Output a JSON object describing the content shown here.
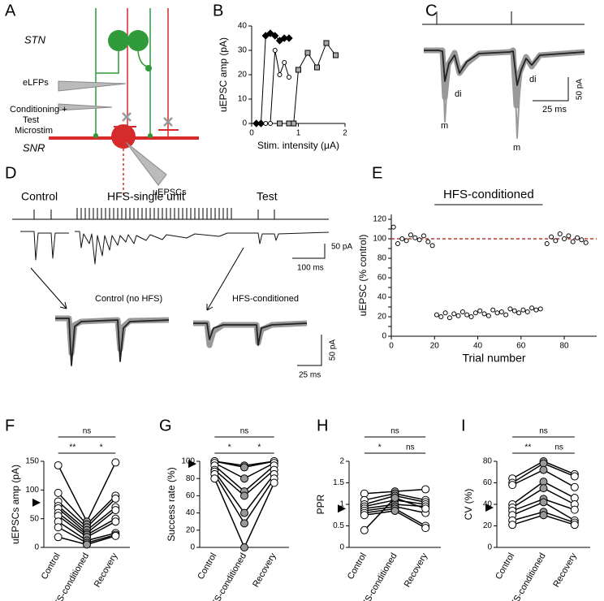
{
  "panel_labels": [
    "A",
    "B",
    "C",
    "D",
    "E",
    "F",
    "G",
    "H",
    "I"
  ],
  "diagram": {
    "stn": "STN",
    "snr": "SNR",
    "elfps": "eLFPs",
    "microstim": [
      "Conditioning +",
      "Test",
      "Microstim"
    ],
    "uepscs": "uEPSCs"
  },
  "traces_c": {
    "labels": [
      "m",
      "di",
      "di",
      "m"
    ],
    "scale_y": "50 pA",
    "scale_x": "25 ms"
  },
  "traces_d": {
    "control": "Control",
    "hfs": "HFS-single unit",
    "test": "Test",
    "scale_y": "50 pA",
    "scale_x": "100 ms",
    "control_nohfs": "Control (no HFS)",
    "hfs_conditioned": "HFS-conditioned",
    "scale_y2": "50 pA",
    "scale_x2": "25 ms"
  },
  "chart_data": [
    {
      "type": "line",
      "xlabel": "Stim. intensity (μA)",
      "ylabel": "uEPSC amp (pA)",
      "xlim": [
        0,
        2
      ],
      "xticks": [
        0,
        1,
        2
      ],
      "ylim": [
        0,
        40
      ],
      "yticks": [
        0,
        10,
        20,
        30,
        40
      ],
      "series": [
        {
          "marker": "diamond",
          "color": "#000000",
          "x": [
            0.1,
            0.2,
            0.3,
            0.4,
            0.5,
            0.6,
            0.7,
            0.8
          ],
          "values": [
            0,
            0,
            36,
            37,
            36,
            34,
            35,
            35
          ]
        },
        {
          "marker": "circle",
          "color": "#ffffff",
          "x": [
            0.3,
            0.4,
            0.5,
            0.6,
            0.7,
            0.8
          ],
          "values": [
            0,
            0,
            30,
            20,
            25,
            19
          ]
        },
        {
          "marker": "square",
          "color": "#aaaaaa",
          "x": [
            0.6,
            0.8,
            0.9,
            1.0,
            1.2,
            1.4,
            1.6,
            1.8
          ],
          "values": [
            0,
            0,
            0,
            22,
            29,
            23,
            33,
            28
          ]
        }
      ]
    },
    {
      "type": "scatter",
      "xlabel": "Trial number",
      "ylabel": "uEPSC (% control)",
      "annotation": "HFS-conditioned",
      "conditioning_span": [
        20,
        70
      ],
      "reference": 100,
      "reference_color": "#c0392b",
      "xlim": [
        0,
        95
      ],
      "xticks": [
        0,
        20,
        40,
        60,
        80
      ],
      "ylim": [
        0,
        125
      ],
      "yticks": [
        0,
        10,
        20,
        30,
        40,
        50,
        60,
        70,
        80,
        90,
        100,
        110,
        120
      ],
      "series": [
        {
          "color": "#ffffff",
          "x": [
            1,
            3,
            5,
            7,
            9,
            11,
            13,
            15,
            17,
            19
          ],
          "values": [
            112,
            95,
            100,
            98,
            104,
            101,
            99,
            103,
            97,
            93
          ]
        },
        {
          "color": "#ffffff",
          "x": [
            72,
            74,
            76,
            78,
            80,
            82,
            84,
            86,
            88,
            90
          ],
          "values": [
            95,
            102,
            98,
            105,
            100,
            103,
            97,
            101,
            99,
            96
          ]
        },
        {
          "color": "#ffffff",
          "x": [
            21,
            23,
            25,
            27,
            29,
            31,
            33,
            35,
            37,
            39,
            41,
            43,
            45,
            47,
            49,
            51,
            53,
            55,
            57,
            59,
            61,
            63,
            65,
            67,
            69
          ],
          "values": [
            22,
            20,
            24,
            19,
            23,
            21,
            25,
            22,
            20,
            24,
            26,
            23,
            21,
            27,
            24,
            25,
            22,
            28,
            26,
            24,
            27,
            25,
            29,
            27,
            28
          ]
        }
      ]
    },
    {
      "type": "paired",
      "ylabel": "uEPSCs amp (pA)",
      "categories": [
        "Control",
        "HFS-conditioned",
        "Recovery"
      ],
      "point_colors": [
        "#ffffff",
        "#999999",
        "#ffffff"
      ],
      "arrow": 78,
      "significance": {
        "control_recovery": "ns",
        "control_hfs": "**",
        "hfs_recovery": "*"
      },
      "ylim": [
        0,
        150
      ],
      "yticks": [
        0,
        50,
        100,
        150
      ],
      "series": [
        {
          "values": [
            143,
            45,
            148
          ]
        },
        {
          "values": [
            95,
            40,
            90
          ]
        },
        {
          "values": [
            80,
            35,
            85
          ]
        },
        {
          "values": [
            72,
            30,
            70
          ]
        },
        {
          "values": [
            68,
            25,
            65
          ]
        },
        {
          "values": [
            60,
            22,
            50
          ]
        },
        {
          "values": [
            55,
            18,
            45
          ]
        },
        {
          "values": [
            45,
            12,
            25
          ]
        },
        {
          "values": [
            35,
            8,
            22
          ]
        },
        {
          "values": [
            18,
            5,
            20
          ]
        }
      ]
    },
    {
      "type": "paired",
      "ylabel": "Success rate (%)",
      "categories": [
        "Control",
        "HFS-conditioned",
        "Recovery"
      ],
      "point_colors": [
        "#ffffff",
        "#999999",
        "#ffffff"
      ],
      "arrow": 97,
      "significance": {
        "control_recovery": "ns",
        "control_hfs": "*",
        "hfs_recovery": "*"
      },
      "ylim": [
        0,
        100
      ],
      "yticks": [
        0,
        20,
        40,
        60,
        80,
        100
      ],
      "series": [
        {
          "values": [
            100,
            95,
            100
          ]
        },
        {
          "values": [
            100,
            93,
            100
          ]
        },
        {
          "values": [
            98,
            80,
            98
          ]
        },
        {
          "values": [
            95,
            65,
            95
          ]
        },
        {
          "values": [
            90,
            60,
            90
          ]
        },
        {
          "values": [
            88,
            40,
            85
          ]
        },
        {
          "values": [
            85,
            28,
            80
          ]
        },
        {
          "values": [
            80,
            0,
            75
          ]
        }
      ]
    },
    {
      "type": "paired",
      "ylabel": "PPR",
      "categories": [
        "Control",
        "HFS-conditioned",
        "Recovery"
      ],
      "point_colors": [
        "#ffffff",
        "#999999",
        "#ffffff"
      ],
      "arrow": 0.9,
      "significance": {
        "control_recovery": "ns",
        "control_hfs": "*",
        "hfs_recovery": "ns"
      },
      "ylim": [
        0,
        2
      ],
      "yticks": [
        0,
        0.5,
        1,
        1.5,
        2
      ],
      "series": [
        {
          "values": [
            1.25,
            1.3,
            1.35
          ]
        },
        {
          "values": [
            1.1,
            1.25,
            1.1
          ]
        },
        {
          "values": [
            1.0,
            1.2,
            1.05
          ]
        },
        {
          "values": [
            0.95,
            1.1,
            1.0
          ]
        },
        {
          "values": [
            0.9,
            1.0,
            0.95
          ]
        },
        {
          "values": [
            0.85,
            0.95,
            0.8
          ]
        },
        {
          "values": [
            0.8,
            0.9,
            0.5
          ]
        },
        {
          "values": [
            0.75,
            0.85,
            0.45
          ]
        },
        {
          "values": [
            0.4,
            1.15,
            0.9
          ]
        }
      ]
    },
    {
      "type": "paired",
      "ylabel": "CV (%)",
      "categories": [
        "Control",
        "HFS-conditioned",
        "Recovery"
      ],
      "point_colors": [
        "#ffffff",
        "#999999",
        "#ffffff"
      ],
      "arrow": 37,
      "significance": {
        "control_recovery": "ns",
        "control_hfs": "**",
        "hfs_recovery": "ns"
      },
      "ylim": [
        0,
        80
      ],
      "yticks": [
        0,
        20,
        40,
        60,
        80
      ],
      "series": [
        {
          "values": [
            64,
            80,
            68
          ]
        },
        {
          "values": [
            60,
            78,
            66
          ]
        },
        {
          "values": [
            58,
            72,
            56
          ]
        },
        {
          "values": [
            40,
            61,
            46
          ]
        },
        {
          "values": [
            37,
            55,
            40
          ]
        },
        {
          "values": [
            34,
            45,
            35
          ]
        },
        {
          "values": [
            30,
            42,
            25
          ]
        },
        {
          "values": [
            25,
            33,
            23
          ]
        },
        {
          "values": [
            21,
            30,
            21
          ]
        }
      ]
    }
  ]
}
